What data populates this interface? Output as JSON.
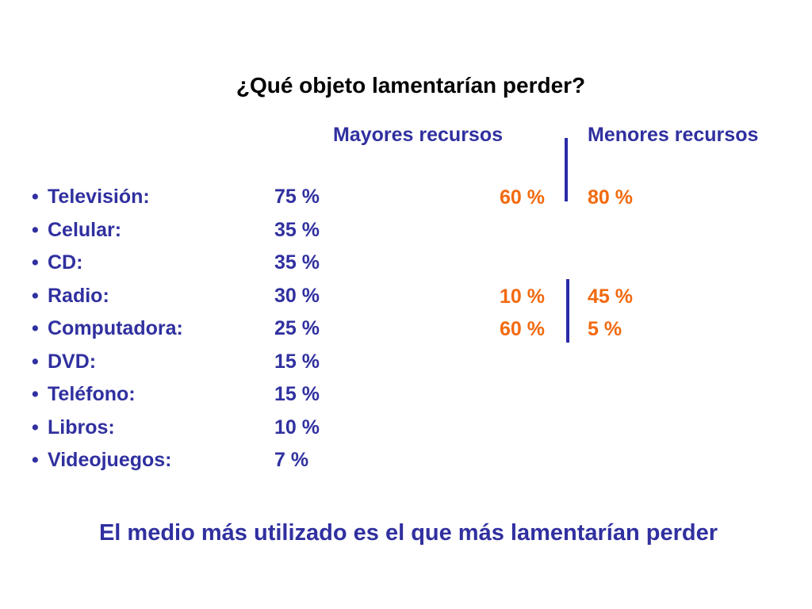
{
  "title": "¿Qué objeto lamentarían perder?",
  "columns": {
    "major": "Mayores recursos",
    "minor": "Menores recursos"
  },
  "items": [
    {
      "label": "Televisión:",
      "value": "75 %"
    },
    {
      "label": "Celular:",
      "value": "35 %"
    },
    {
      "label": "CD:",
      "value": "35 %"
    },
    {
      "label": "Radio:",
      "value": "30 %"
    },
    {
      "label": "Computadora:",
      "value": "25 %"
    },
    {
      "label": "DVD:",
      "value": "15 %"
    },
    {
      "label": "Teléfono:",
      "value": "15 %"
    },
    {
      "label": "Libros:",
      "value": "10 %"
    },
    {
      "label": "Videojuegos:",
      "value": "7 %"
    }
  ],
  "comparison": {
    "television": {
      "major": "60 %",
      "minor": "80 %"
    },
    "radio": {
      "major": "10 %",
      "minor": "45 %"
    },
    "computadora": {
      "major": "60 %",
      "minor": "5 %"
    }
  },
  "bullet": "•",
  "footer": "El medio más utilizado es el que más lamentarían perder",
  "colors": {
    "text_primary": "#3030a0",
    "accent_orange": "#f26a10",
    "divider": "#2a2aa8"
  }
}
